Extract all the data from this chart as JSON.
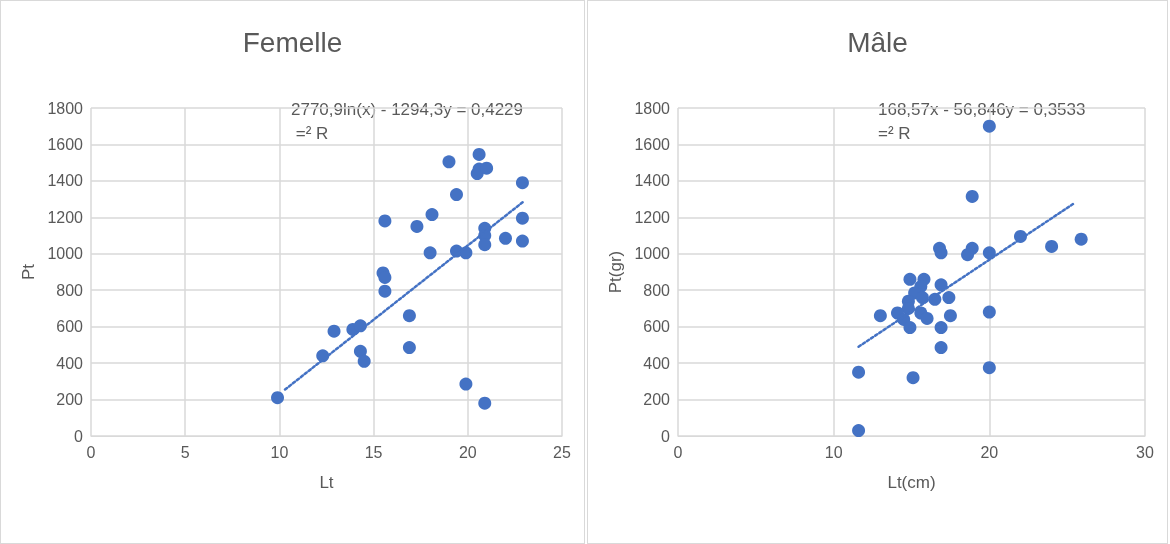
{
  "chart_data": [
    {
      "type": "scatter",
      "title": "Femelle",
      "xlabel": "Lt",
      "ylabel": "Pt",
      "xlim": [
        0,
        25
      ],
      "xticks": [
        0,
        5,
        10,
        15,
        20,
        25
      ],
      "ylim": [
        0,
        1800
      ],
      "yticks": [
        0,
        200,
        400,
        600,
        800,
        1000,
        1200,
        1400,
        1600,
        1800
      ],
      "grid": true,
      "marker": "circle",
      "annotations": [
        "2770,9ln(x) - 1294,3y = 0,4229 =² R"
      ],
      "series": [
        {
          "type": "scatter",
          "color": "#4472c4",
          "x": [
            9.9,
            12.3,
            12.9,
            13.9,
            14.3,
            14.3,
            14.5,
            15.5,
            15.6,
            15.6,
            15.6,
            16.9,
            16.9,
            17.3,
            18.1,
            18,
            19,
            19.4,
            19.4,
            19.9,
            19.9,
            20.6,
            20.5,
            20.6,
            21,
            20.9,
            20.9,
            20.9,
            20.9,
            22,
            22.9,
            22.9,
            22.9
          ],
          "values": [
            210,
            440,
            575,
            585,
            605,
            465,
            410,
            895,
            870,
            795,
            1180,
            660,
            485,
            1150,
            1215,
            1005,
            1505,
            1325,
            1015,
            1005,
            285,
            1545,
            1440,
            1465,
            1470,
            1140,
            1100,
            1050,
            180,
            1085,
            1390,
            1195,
            1070
          ]
        },
        {
          "type": "line",
          "color": "#4472c4",
          "line_style": "dotted",
          "marker": "none",
          "x": [
            10.3,
            23
          ],
          "values": [
            255,
            1290
          ]
        }
      ]
    },
    {
      "type": "scatter",
      "title": "Mâle",
      "xlabel": "Lt(cm)",
      "ylabel": "Pt(gr)",
      "xlim": [
        0,
        30
      ],
      "xticks": [
        0,
        10,
        20,
        30
      ],
      "ylim": [
        0,
        1800
      ],
      "yticks": [
        0,
        200,
        400,
        600,
        800,
        1000,
        1200,
        1400,
        1600,
        1800
      ],
      "grid": true,
      "marker": "circle",
      "annotations": [
        "168,57x - 56,846y = 0,3533 =² R"
      ],
      "series": [
        {
          "type": "scatter",
          "color": "#4472c4",
          "x": [
            20,
            18.9,
            22,
            24,
            25.9,
            16.8,
            16.9,
            18.9,
            18.6,
            20,
            14.9,
            15.8,
            15.6,
            16.9,
            15.2,
            14.8,
            15.7,
            16.5,
            17.4,
            14.8,
            14.1,
            14.5,
            15.6,
            16,
            13,
            17.5,
            20,
            14.9,
            16.9,
            16.9,
            20,
            11.6,
            15.1,
            11.6
          ],
          "values": [
            1700,
            1315,
            1095,
            1040,
            1080,
            1030,
            1005,
            1030,
            995,
            1005,
            860,
            860,
            820,
            830,
            785,
            740,
            760,
            750,
            760,
            700,
            675,
            640,
            675,
            645,
            660,
            660,
            680,
            595,
            595,
            485,
            375,
            350,
            320,
            30
          ]
        },
        {
          "type": "line",
          "color": "#4472c4",
          "line_style": "dotted",
          "marker": "none",
          "x": [
            11.6,
            25.5
          ],
          "values": [
            490,
            1280
          ]
        }
      ]
    }
  ]
}
